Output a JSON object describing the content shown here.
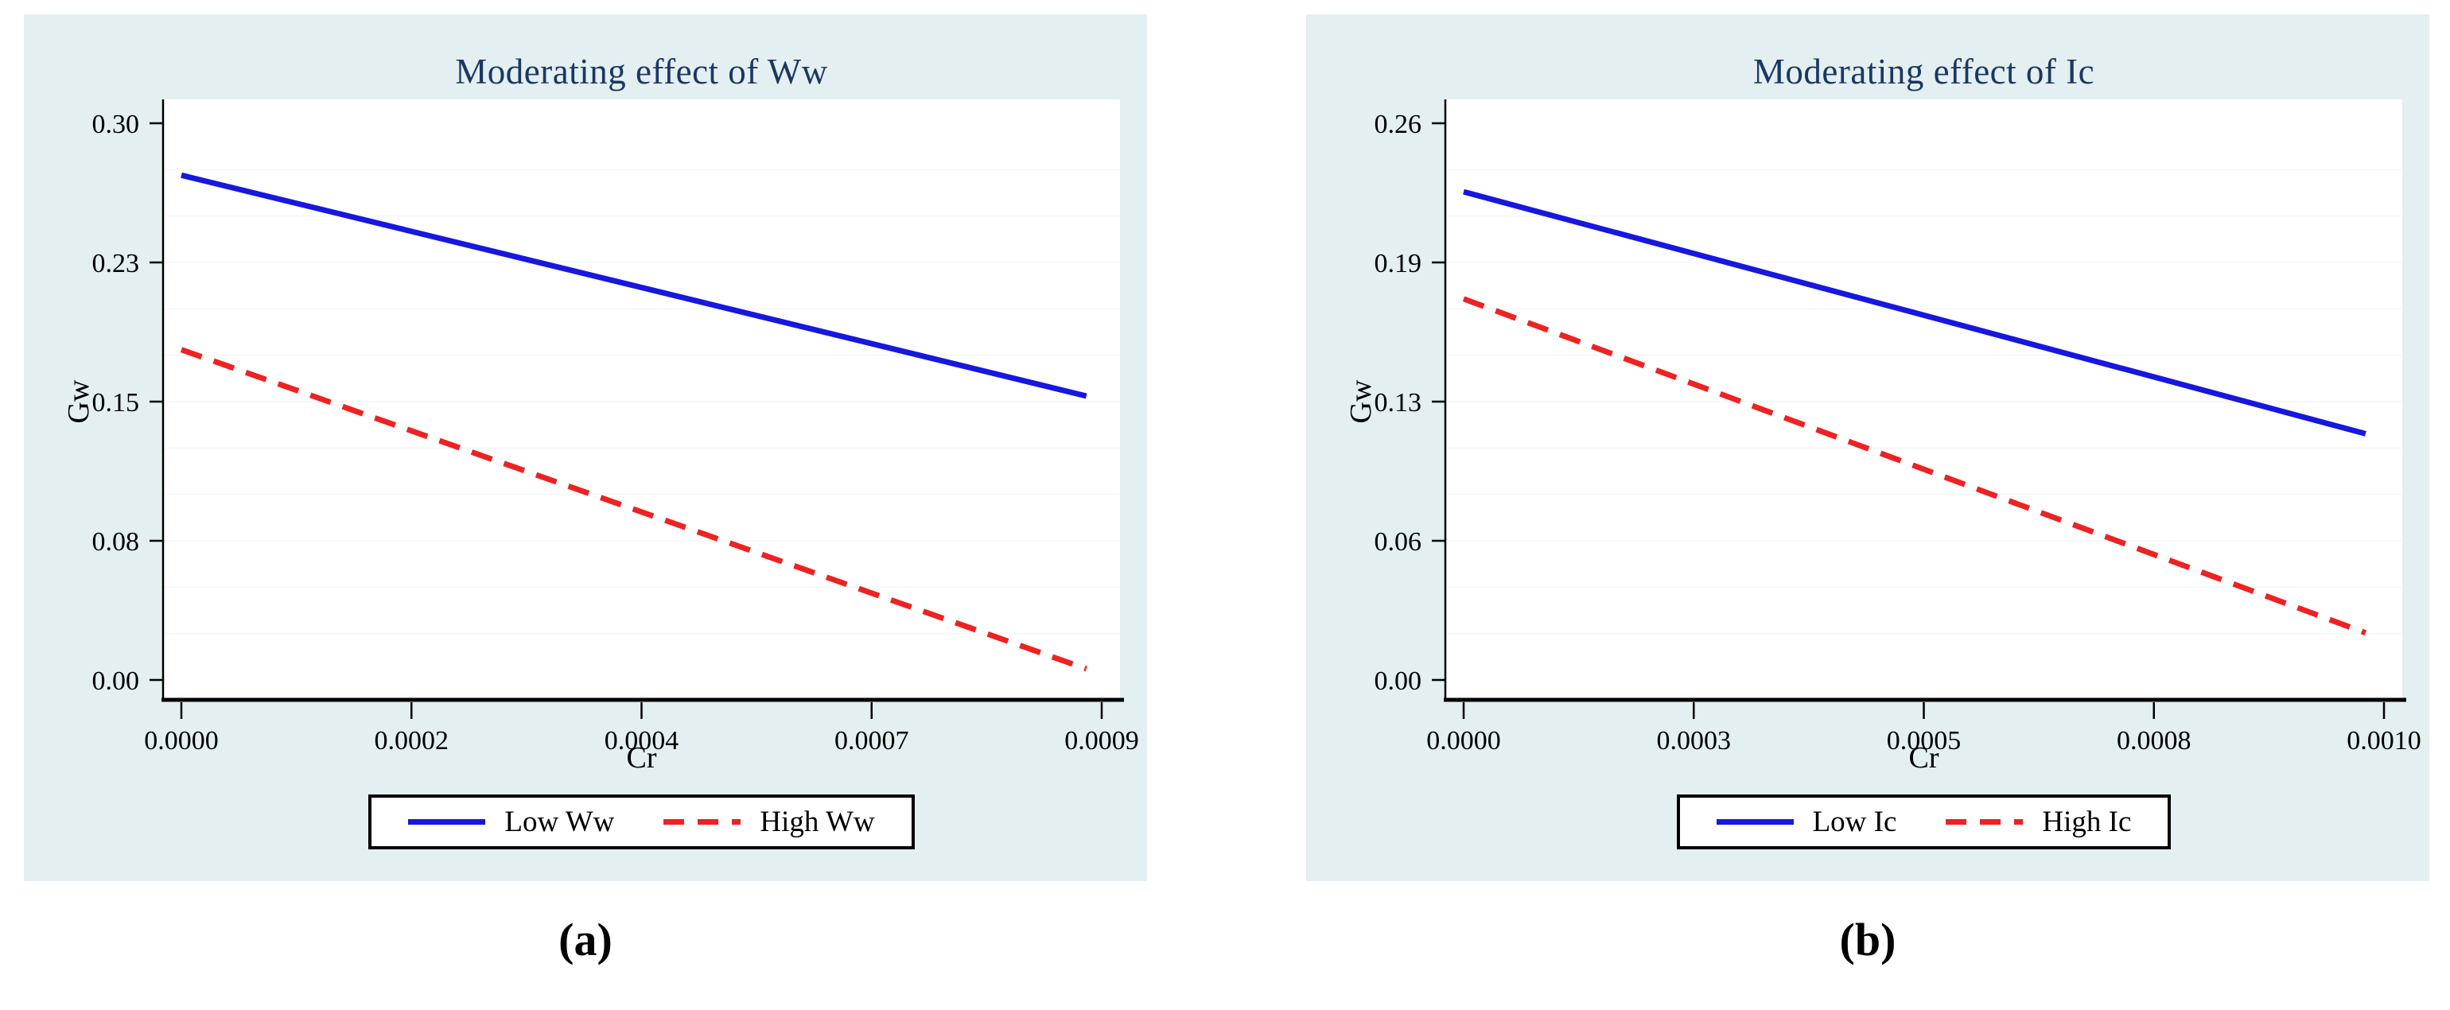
{
  "figure": {
    "captions": [
      "(a)",
      "(b)"
    ]
  },
  "colors": {
    "panel_bg": "#e4eff1",
    "plot_bg": "#ffffff",
    "title": "#1a3862",
    "axis": "#000000",
    "low_line": "#1717e0",
    "high_line": "#ee2222",
    "minor_grid": "#f5f9fa",
    "legend_border": "#000000"
  },
  "chart_data": [
    {
      "id": "a",
      "type": "line",
      "title": "Moderating effect of Ww",
      "xlabel": "Cr",
      "ylabel": "Gw",
      "xlim": [
        0,
        0.0009
      ],
      "ylim": [
        0,
        0.3
      ],
      "x_ticks": [
        {
          "label": "0.0000",
          "value": 0
        },
        {
          "label": "0.0002",
          "value": 0.000225
        },
        {
          "label": "0.0004",
          "value": 0.00045
        },
        {
          "label": "0.0007",
          "value": 0.000675
        },
        {
          "label": "0.0009",
          "value": 0.0009
        }
      ],
      "y_ticks": [
        {
          "label": "0.30",
          "value": 0.3
        },
        {
          "label": "0.23",
          "value": 0.225
        },
        {
          "label": "0.15",
          "value": 0.15
        },
        {
          "label": "0.08",
          "value": 0.075
        },
        {
          "label": "0.00",
          "value": 0
        }
      ],
      "minor_grid_step": 0.025,
      "legend_position": "bottom",
      "series": [
        {
          "name": "Low Ww",
          "style": "solid",
          "color_key": "low_line",
          "points": [
            {
              "x": 0,
              "y": 0.272
            },
            {
              "x": 0.000885,
              "y": 0.153
            }
          ]
        },
        {
          "name": "High Ww",
          "style": "dashed",
          "color_key": "high_line",
          "points": [
            {
              "x": 0,
              "y": 0.178
            },
            {
              "x": 0.000885,
              "y": 0.006
            }
          ]
        }
      ]
    },
    {
      "id": "b",
      "type": "line",
      "title": "Moderating effect of Ic",
      "xlabel": "Cr",
      "ylabel": "Gw",
      "xlim": [
        0,
        0.001
      ],
      "ylim": [
        0,
        0.26
      ],
      "x_ticks": [
        {
          "label": "0.0000",
          "value": 0
        },
        {
          "label": "0.0003",
          "value": 0.00025
        },
        {
          "label": "0.0005",
          "value": 0.0005
        },
        {
          "label": "0.0008",
          "value": 0.00075
        },
        {
          "label": "0.0010",
          "value": 0.001
        }
      ],
      "y_ticks": [
        {
          "label": "0.26",
          "value": 0.26
        },
        {
          "label": "0.19",
          "value": 0.195
        },
        {
          "label": "0.13",
          "value": 0.13
        },
        {
          "label": "0.06",
          "value": 0.065
        },
        {
          "label": "0.00",
          "value": 0
        }
      ],
      "minor_grid_step": 0.021667,
      "legend_position": "bottom",
      "series": [
        {
          "name": "Low Ic",
          "style": "solid",
          "color_key": "low_line",
          "points": [
            {
              "x": 0,
              "y": 0.228
            },
            {
              "x": 0.00098,
              "y": 0.115
            }
          ]
        },
        {
          "name": "High Ic",
          "style": "dashed",
          "color_key": "high_line",
          "points": [
            {
              "x": 0,
              "y": 0.178
            },
            {
              "x": 0.00098,
              "y": 0.022
            }
          ]
        }
      ]
    }
  ]
}
